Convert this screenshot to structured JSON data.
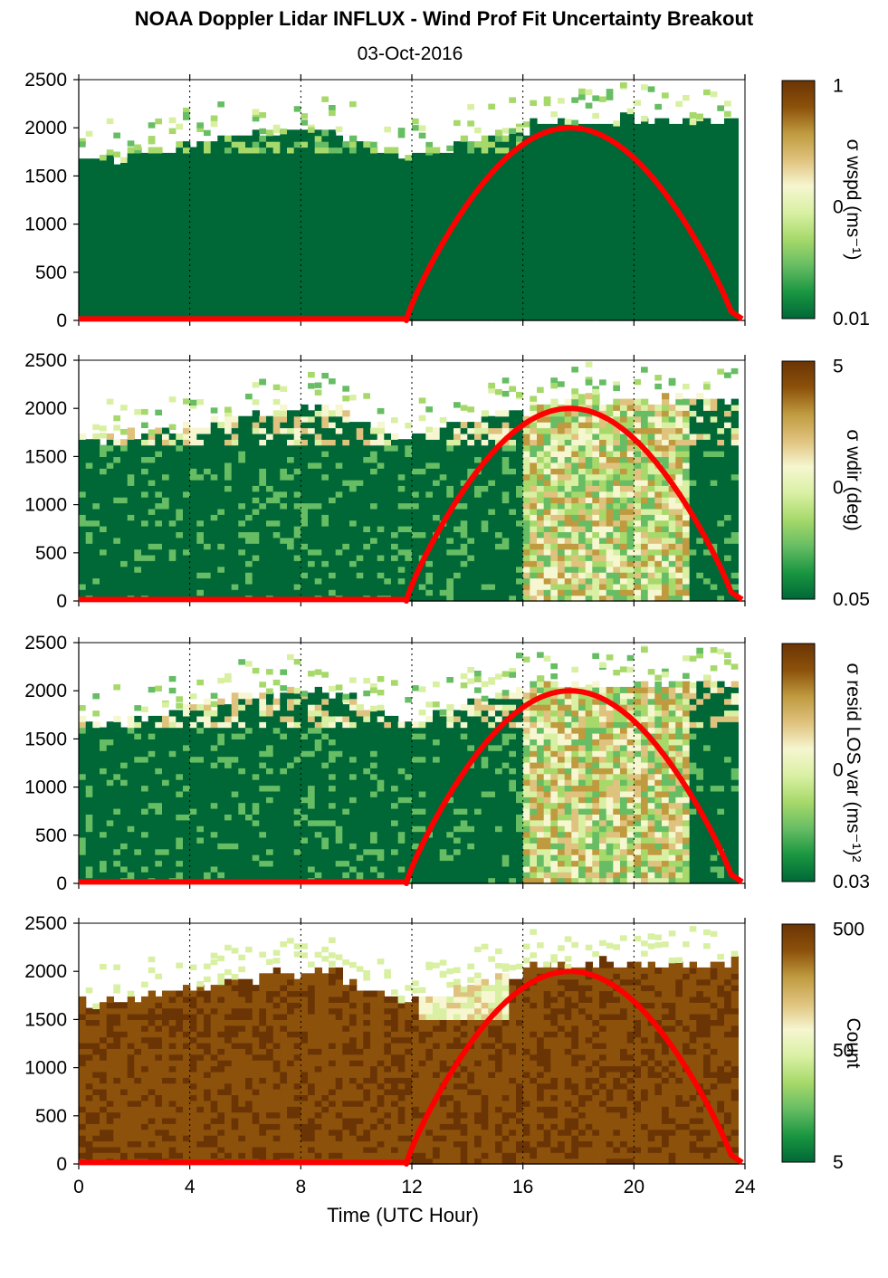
{
  "header": {
    "title": "NOAA Doppler Lidar INFLUX - Wind Prof Fit Uncertainty Breakout",
    "subtitle": "03-Oct-2016"
  },
  "colors": {
    "colormap": [
      "#006837",
      "#1a9641",
      "#66bd63",
      "#a6d96a",
      "#d9f0a3",
      "#f6f6d0",
      "#dfc27d",
      "#bf9a3f",
      "#8c510a",
      "#6b3405"
    ],
    "sun_curve": "#ff0000",
    "grid": "#000000"
  },
  "chart_data": [
    {
      "type": "heatmap",
      "panel": "wspd",
      "colorbar_label": "σ wspd (ms⁻¹)",
      "colorbar_ticks": [
        "1",
        "0",
        "0.01"
      ],
      "ylim": [
        0,
        2500
      ],
      "yticks": [
        "0",
        "500",
        "1000",
        "1500",
        "2000",
        "2500"
      ],
      "xticks": [
        "0",
        "4",
        "8",
        "12",
        "16",
        "20",
        "24"
      ],
      "xlim": [
        0,
        24
      ]
    },
    {
      "type": "heatmap",
      "panel": "wdir",
      "colorbar_label": "σ wdir (deg)",
      "colorbar_ticks": [
        "5",
        "0",
        "0.05"
      ],
      "ylim": [
        0,
        2500
      ],
      "yticks": [
        "0",
        "500",
        "1000",
        "1500",
        "2000",
        "2500"
      ],
      "xticks": [
        "0",
        "4",
        "8",
        "12",
        "16",
        "20",
        "24"
      ],
      "xlim": [
        0,
        24
      ]
    },
    {
      "type": "heatmap",
      "panel": "resid",
      "colorbar_label": "σ resid LOS var (ms⁻¹)²",
      "colorbar_ticks": [
        "0",
        "0.03"
      ],
      "ylim": [
        0,
        2500
      ],
      "yticks": [
        "0",
        "500",
        "1000",
        "1500",
        "2000",
        "2500"
      ],
      "xticks": [
        "0",
        "4",
        "8",
        "12",
        "16",
        "20",
        "24"
      ],
      "xlim": [
        0,
        24
      ]
    },
    {
      "type": "heatmap",
      "panel": "count",
      "colorbar_label": "Count",
      "colorbar_ticks": [
        "500",
        "50",
        "5"
      ],
      "ylim": [
        0,
        2500
      ],
      "yticks": [
        "0",
        "500",
        "1000",
        "1500",
        "2000",
        "2500"
      ],
      "xticks": [
        "0",
        "4",
        "8",
        "12",
        "16",
        "20",
        "24"
      ],
      "xlim": [
        0,
        24
      ],
      "xlabel": "Time (UTC Hour)"
    }
  ],
  "sun_curve": {
    "rise_hour": 11.8,
    "peak_hour": 17.6,
    "set_hour": 23.6,
    "peak_value": 2000
  }
}
